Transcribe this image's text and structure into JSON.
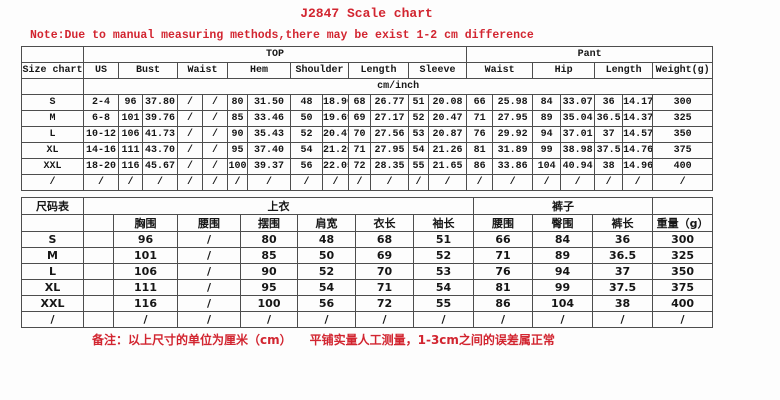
{
  "title": "J2847 Scale chart",
  "note": "Note:Due to manual measuring methods,there may be exist 1-2 cm difference",
  "footer_note": "备注：以上尺寸的单位为厘米（cm）　　平铺实量人工测量，1-3cm之间的误差属正常",
  "colors": {
    "accent_red": "#d22530",
    "table_border": "#4d4d4d",
    "text": "#161616",
    "background": "#fdfdfd"
  },
  "size_table_en": {
    "corner_label": "Size chart",
    "groups": {
      "top": "TOP",
      "pant": "Pant"
    },
    "unit_label": "cm/inch",
    "columns": {
      "us": "US",
      "bust": "Bust",
      "waist": "Waist",
      "hem": "Hem",
      "shoulder": "Shoulder",
      "length": "Length",
      "sleeve": "Sleeve",
      "pant_waist": "Waist",
      "hip": "Hip",
      "pant_length": "Length",
      "weight": "Weight(g)"
    },
    "rows": [
      {
        "size": "S",
        "cells": [
          "2-4",
          "96",
          "37.80",
          "/",
          "/",
          "80",
          "31.50",
          "48",
          "18.90",
          "68",
          "26.77",
          "51",
          "20.08",
          "66",
          "25.98",
          "84",
          "33.07",
          "36",
          "14.17",
          "300"
        ]
      },
      {
        "size": "M",
        "cells": [
          "6-8",
          "101",
          "39.76",
          "/",
          "/",
          "85",
          "33.46",
          "50",
          "19.69",
          "69",
          "27.17",
          "52",
          "20.47",
          "71",
          "27.95",
          "89",
          "35.04",
          "36.5",
          "14.37",
          "325"
        ]
      },
      {
        "size": "L",
        "cells": [
          "10-12",
          "106",
          "41.73",
          "/",
          "/",
          "90",
          "35.43",
          "52",
          "20.47",
          "70",
          "27.56",
          "53",
          "20.87",
          "76",
          "29.92",
          "94",
          "37.01",
          "37",
          "14.57",
          "350"
        ]
      },
      {
        "size": "XL",
        "cells": [
          "14-16",
          "111",
          "43.70",
          "/",
          "/",
          "95",
          "37.40",
          "54",
          "21.26",
          "71",
          "27.95",
          "54",
          "21.26",
          "81",
          "31.89",
          "99",
          "38.98",
          "37.5",
          "14.76",
          "375"
        ]
      },
      {
        "size": "XXL",
        "cells": [
          "18-20",
          "116",
          "45.67",
          "/",
          "/",
          "100",
          "39.37",
          "56",
          "22.05",
          "72",
          "28.35",
          "55",
          "21.65",
          "86",
          "33.86",
          "104",
          "40.94",
          "38",
          "14.96",
          "400"
        ]
      },
      {
        "size": "/",
        "cells": [
          "/",
          "/",
          "/",
          "/",
          "/",
          "/",
          "/",
          "/",
          "/",
          "/",
          "/",
          "/",
          "/",
          "/",
          "/",
          "/",
          "/",
          "/",
          "/",
          "/"
        ]
      }
    ]
  },
  "size_table_cn": {
    "corner_label": "尺码表",
    "groups": {
      "top": "上衣",
      "pant": "裤子"
    },
    "columns": {
      "bust": "胸围",
      "waist": "腰围",
      "hem": "摆围",
      "shoulder": "肩宽",
      "length": "衣长",
      "sleeve": "袖长",
      "pant_waist": "腰围",
      "hip": "臀围",
      "pant_length": "裤长",
      "weight": "重量（g）"
    },
    "rows": [
      {
        "size": "S",
        "cells": [
          "",
          "96",
          "/",
          "80",
          "48",
          "68",
          "51",
          "66",
          "84",
          "36",
          "300"
        ]
      },
      {
        "size": "M",
        "cells": [
          "",
          "101",
          "/",
          "85",
          "50",
          "69",
          "52",
          "71",
          "89",
          "36.5",
          "325"
        ]
      },
      {
        "size": "L",
        "cells": [
          "",
          "106",
          "/",
          "90",
          "52",
          "70",
          "53",
          "76",
          "94",
          "37",
          "350"
        ]
      },
      {
        "size": "XL",
        "cells": [
          "",
          "111",
          "/",
          "95",
          "54",
          "71",
          "54",
          "81",
          "99",
          "37.5",
          "375"
        ]
      },
      {
        "size": "XXL",
        "cells": [
          "",
          "116",
          "/",
          "100",
          "56",
          "72",
          "55",
          "86",
          "104",
          "38",
          "400"
        ]
      },
      {
        "size": "/",
        "cells": [
          "",
          "/",
          "/",
          "/",
          "/",
          "/",
          "/",
          "/",
          "/",
          "/",
          "/"
        ]
      }
    ]
  }
}
